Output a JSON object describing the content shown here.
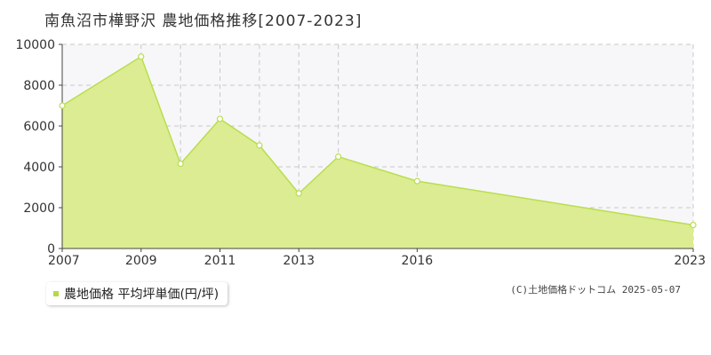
{
  "title": "南魚沼市樺野沢 農地価格推移[2007-2023]",
  "legend_label": "農地価格 平均坪単価(円/坪)",
  "copyright": "(C)土地価格ドットコム 2025-05-07",
  "colors": {
    "fill": "#dcec92",
    "line": "#b9de4e",
    "grid": "#c8c8c8",
    "plot_bg": "#f7f7f9"
  },
  "chart_data": {
    "type": "area",
    "title": "南魚沼市樺野沢 農地価格推移[2007-2023]",
    "x": [
      2007,
      2009,
      2010,
      2011,
      2012,
      2013,
      2014,
      2016,
      2023
    ],
    "x_positions": [
      2007,
      2009,
      2010,
      2011,
      2012,
      2013,
      2014,
      2016,
      2023
    ],
    "xtick_labels": [
      "2007",
      "2009",
      "2011",
      "2013",
      "2016",
      "2023"
    ],
    "ytick_labels": [
      "0",
      "2000",
      "4000",
      "6000",
      "8000",
      "10000"
    ],
    "series": [
      {
        "name": "農地価格 平均坪単価(円/坪)",
        "values": [
          7000,
          9400,
          4150,
          6350,
          5050,
          2700,
          4500,
          3300,
          1150
        ]
      }
    ],
    "ylim": [
      0,
      10000
    ],
    "grid": true,
    "legend": "bottom-left"
  }
}
